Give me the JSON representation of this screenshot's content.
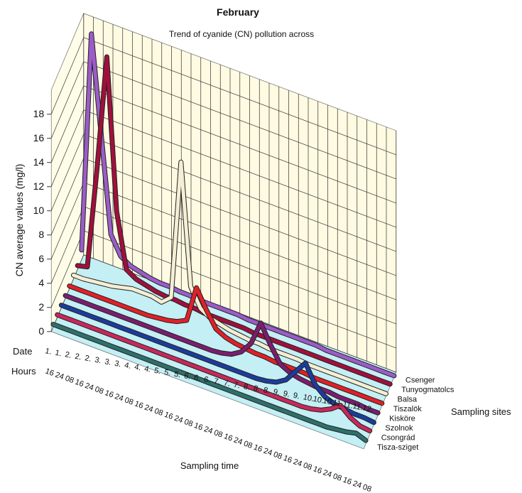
{
  "chart_data": {
    "type": "ribbon3d",
    "title": "February",
    "subtitle": "Trend of cyanide (CN) pollution across",
    "y_label": "CN average values (mg/l)",
    "x_label": "Sampling time",
    "z_label": "Sampling sites",
    "date_label": "Date",
    "hours_label": "Hours",
    "dates": [
      "1.",
      "1.",
      "2.",
      "2.",
      "2.",
      "3.",
      "3.",
      "3.",
      "4.",
      "4.",
      "4.",
      "5.",
      "5.",
      "5.",
      "6.",
      "6.",
      "6.",
      "7.",
      "7.",
      "7.",
      "8.",
      "8.",
      "8.",
      "9.",
      "9.",
      "9.",
      "10.",
      "10.",
      "10.",
      "11.",
      "11.",
      "11.",
      "12."
    ],
    "hours": [
      "16",
      "24",
      "08",
      "16",
      "24",
      "08",
      "16",
      "24",
      "08",
      "16",
      "24",
      "08",
      "16",
      "24",
      "08",
      "16",
      "24",
      "08",
      "16",
      "24",
      "08",
      "16",
      "24",
      "08",
      "16",
      "24",
      "08",
      "16",
      "24",
      "08",
      "16",
      "24",
      "08"
    ],
    "ylim": [
      0,
      20
    ],
    "yticks": [
      0,
      2,
      4,
      6,
      8,
      10,
      12,
      14,
      16,
      18
    ],
    "grid": true,
    "series": [
      {
        "name": "Tisza-sziget",
        "color": "#2f6f6a",
        "values": [
          0.2,
          0.2,
          0.2,
          0.2,
          0.2,
          0.2,
          0.2,
          0.2,
          0.2,
          0.2,
          0.2,
          0.2,
          0.2,
          0.2,
          0.2,
          0.2,
          0.2,
          0.2,
          0.2,
          0.2,
          0.2,
          0.2,
          0.2,
          0.2,
          0.2,
          0.2,
          0.2,
          0.2,
          0.2,
          0.3,
          0.4,
          0.6,
          0.3
        ]
      },
      {
        "name": "Csongrád",
        "color": "#c8285a",
        "values": [
          0.2,
          0.2,
          0.2,
          0.2,
          0.2,
          0.2,
          0.2,
          0.2,
          0.2,
          0.2,
          0.2,
          0.2,
          0.2,
          0.2,
          0.2,
          0.2,
          0.2,
          0.2,
          0.2,
          0.2,
          0.2,
          0.2,
          0.2,
          0.2,
          0.2,
          0.2,
          0.3,
          0.5,
          0.9,
          1.5,
          0.8,
          0.4,
          0.3
        ]
      },
      {
        "name": "Szolnok",
        "color": "#1c3c9c",
        "values": [
          0.2,
          0.2,
          0.2,
          0.2,
          0.2,
          0.2,
          0.2,
          0.2,
          0.2,
          0.2,
          0.2,
          0.2,
          0.2,
          0.2,
          0.2,
          0.2,
          0.2,
          0.2,
          0.2,
          0.2,
          0.2,
          0.3,
          0.5,
          1,
          2,
          3,
          1.5,
          0.8,
          0.5,
          0.4,
          0.3,
          0.3,
          0.2
        ]
      },
      {
        "name": "Kisköre",
        "color": "#7a1e6e",
        "values": [
          0.2,
          0.2,
          0.2,
          0.2,
          0.2,
          0.2,
          0.2,
          0.2,
          0.2,
          0.2,
          0.2,
          0.2,
          0.2,
          0.2,
          0.2,
          0.2,
          0.3,
          0.5,
          1,
          2,
          4,
          2.5,
          1.2,
          0.8,
          0.6,
          0.5,
          0.4,
          0.4,
          0.3,
          0.3,
          0.3,
          0.2,
          0.2
        ]
      },
      {
        "name": "Tiszalök",
        "color": "#e02028",
        "values": [
          0.2,
          0.2,
          0.2,
          0.2,
          0.2,
          0.2,
          0.2,
          0.2,
          0.2,
          0.3,
          0.4,
          0.6,
          1,
          4,
          2.5,
          1.2,
          0.8,
          0.6,
          0.5,
          0.4,
          0.4,
          0.3,
          0.3,
          0.3,
          0.3,
          0.2,
          0.2,
          0.2,
          0.2,
          0.2,
          0.2,
          0.2,
          0.2
        ]
      },
      {
        "name": "Balsa",
        "color": "#f4eed4",
        "values": [
          0.3,
          0.3,
          0.4,
          0.5,
          0.6,
          0.8,
          1,
          1,
          1,
          0.8,
          1.5,
          13,
          3,
          1.5,
          1,
          0.8,
          0.6,
          0.5,
          0.4,
          0.4,
          0.3,
          0.3,
          0.3,
          0.3,
          0.2,
          0.2,
          0.2,
          0.2,
          0.2,
          0.2,
          0.2,
          0.2,
          0.2
        ]
      },
      {
        "name": "Tunyogmatolcs",
        "color": "#a0103c",
        "values": [
          0.3,
          0.5,
          9,
          18.5,
          6,
          1.5,
          1,
          0.8,
          0.6,
          0.5,
          0.5,
          0.4,
          0.4,
          0.3,
          0.3,
          0.3,
          0.3,
          0.3,
          0.2,
          0.2,
          0.2,
          0.2,
          0.2,
          0.2,
          0.2,
          0.2,
          0.2,
          0.2,
          0.2,
          0.2,
          0.2,
          0.2,
          0.2
        ]
      },
      {
        "name": "Csenger",
        "color": "#9b5cc8",
        "values": [
          0.8,
          19,
          11,
          3,
          1.5,
          1,
          0.8,
          0.6,
          0.5,
          0.5,
          0.4,
          0.4,
          0.3,
          0.3,
          0.3,
          0.3,
          0.3,
          0.2,
          0.2,
          0.2,
          0.2,
          0.2,
          0.2,
          0.2,
          0.2,
          0.1,
          0.1,
          0.1,
          0.1,
          0.1,
          0.1,
          0.1,
          0.1
        ]
      }
    ]
  }
}
